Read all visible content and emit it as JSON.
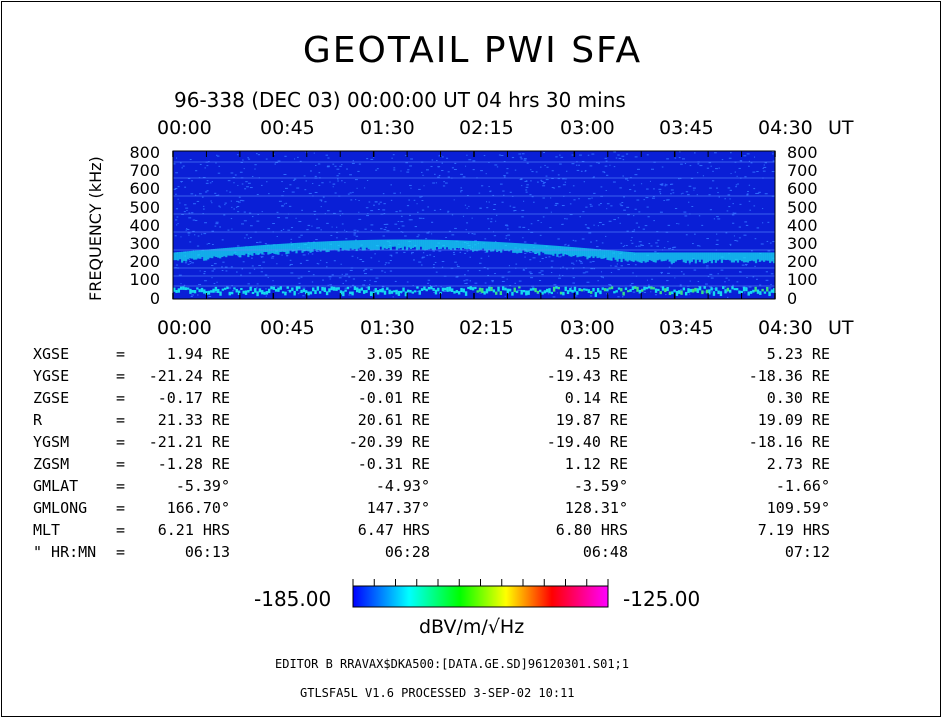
{
  "title": "GEOTAIL PWI SFA",
  "subtitle": "96-338 (DEC 03) 00:00:00 UT    04 hrs  30 mins",
  "colors": {
    "background": "#0a1fd6",
    "noise": "#2f6cff",
    "band": "#16d9f0"
  },
  "chart_data": {
    "type": "heatmap",
    "title": "GEOTAIL PWI SFA",
    "xlabel": "UT",
    "ylabel": "FREQUENCY (kHz)",
    "x_ticks": [
      "00:00",
      "00:45",
      "01:30",
      "02:15",
      "03:00",
      "03:45",
      "04:30"
    ],
    "x_unit": "UT",
    "y_ticks": [
      "800",
      "700",
      "600",
      "500",
      "400",
      "300",
      "200",
      "100",
      "0"
    ],
    "ylim": [
      0,
      800
    ],
    "colorbar": {
      "min": "-185.00",
      "max": "-125.00",
      "unit": "dBV/m/√Hz",
      "colors": [
        "#0000ff",
        "#00ffff",
        "#00ff00",
        "#ffff00",
        "#ff0000",
        "#ff00ff"
      ]
    },
    "features": [
      {
        "name": "band",
        "start_time": "00:00",
        "end_time": "04:30",
        "freq_khz_start": 230,
        "freq_khz_peak": 300,
        "freq_khz_end": 250
      }
    ]
  },
  "ephemeris": {
    "rows": [
      {
        "label": "XGSE",
        "eq": "=",
        "vals": [
          "1.94 RE",
          "3.05 RE",
          "4.15 RE",
          "5.23 RE"
        ]
      },
      {
        "label": "YGSE",
        "eq": "=",
        "vals": [
          "-21.24 RE",
          "-20.39 RE",
          "-19.43 RE",
          "-18.36 RE"
        ]
      },
      {
        "label": "ZGSE",
        "eq": "=",
        "vals": [
          "-0.17 RE",
          "-0.01 RE",
          "0.14 RE",
          "0.30 RE"
        ]
      },
      {
        "label": "R",
        "eq": "=",
        "vals": [
          "21.33 RE",
          "20.61 RE",
          "19.87 RE",
          "19.09 RE"
        ]
      },
      {
        "label": "YGSM",
        "eq": "=",
        "vals": [
          "-21.21 RE",
          "-20.39 RE",
          "-19.40 RE",
          "-18.16 RE"
        ]
      },
      {
        "label": "ZGSM",
        "eq": "=",
        "vals": [
          "-1.28 RE",
          "-0.31 RE",
          "1.12 RE",
          "2.73 RE"
        ]
      },
      {
        "label": "GMLAT",
        "eq": "=",
        "vals": [
          "-5.39°",
          "-4.93°",
          "-3.59°",
          "-1.66°"
        ]
      },
      {
        "label": "GMLONG",
        "eq": "=",
        "vals": [
          "166.70°",
          "147.37°",
          "128.31°",
          "109.59°"
        ]
      },
      {
        "label": "MLT",
        "eq": "=",
        "vals": [
          "6.21 HRS",
          "6.47 HRS",
          "6.80 HRS",
          "7.19 HRS"
        ]
      },
      {
        "label": "\" HR:MN",
        "eq": "=",
        "vals": [
          "06:13",
          "06:28",
          "06:48",
          "07:12"
        ]
      }
    ]
  },
  "footer": {
    "editor": "EDITOR B    RRAVAX$DKA500:[DATA.GE.SD]96120301.S01;1",
    "processed": "GTLSFA5L V1.6      PROCESSED  3-SEP-02  10:11"
  }
}
